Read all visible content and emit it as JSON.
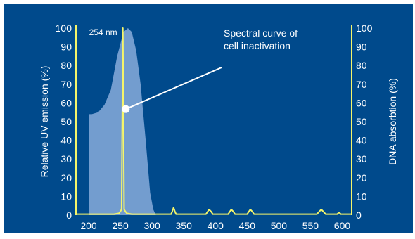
{
  "chart_data": {
    "type": "line",
    "xlabel": "",
    "ylabel_left": "Relative UV emission (%)",
    "ylabel_right": "DNA absorbtion (%)",
    "xlim": [
      180,
      615
    ],
    "ylim": [
      0,
      100
    ],
    "x_ticks": [
      "200",
      "250",
      "300",
      "350",
      "400",
      "450",
      "500",
      "550",
      "600"
    ],
    "y_ticks_left": [
      "0",
      "10",
      "20",
      "30",
      "40",
      "50",
      "60",
      "70",
      "80",
      "90",
      "100"
    ],
    "y_ticks_right": [
      "0",
      "10",
      "20",
      "30",
      "40",
      "50",
      "60",
      "70",
      "80",
      "90",
      "100"
    ],
    "grid": false,
    "colors": {
      "background": "#004a8c",
      "axis_text": "#ffffff",
      "emission_line": "#f5f56a",
      "absorption_fill": "#7fa6d6",
      "pointer": "#ffffff"
    },
    "series": [
      {
        "role": "absorption_area",
        "x": [
          200,
          205,
          215,
          225,
          235,
          245,
          255,
          262,
          268,
          275,
          282,
          290,
          297,
          302,
          306
        ],
        "values": [
          54,
          54,
          55,
          59,
          67,
          85,
          98,
          100,
          98,
          88,
          70,
          40,
          12,
          3,
          0
        ]
      },
      {
        "role": "emission_line",
        "x": [
          180,
          240,
          248,
          252,
          254,
          256,
          260,
          268,
          330,
          332,
          334,
          336,
          338,
          385,
          388,
          390,
          393,
          396,
          420,
          423,
          425,
          428,
          431,
          450,
          453,
          455,
          458,
          461,
          560,
          564,
          567,
          570,
          574,
          592,
          595,
          598,
          615
        ],
        "values": [
          0.5,
          0.5,
          1,
          3,
          100,
          3,
          1,
          0.5,
          0.5,
          2,
          4,
          2,
          0.5,
          0.5,
          2,
          3,
          2,
          0.5,
          0.5,
          2,
          3,
          2,
          0.5,
          0.5,
          2,
          3,
          2,
          0.5,
          0.5,
          2,
          3,
          2,
          0.5,
          0.5,
          1.5,
          0.5,
          0.5
        ]
      }
    ],
    "annotations": {
      "peak_label": "254 nm",
      "callout_line1": "Spectral curve of",
      "callout_line2": "cell inactivation"
    }
  }
}
